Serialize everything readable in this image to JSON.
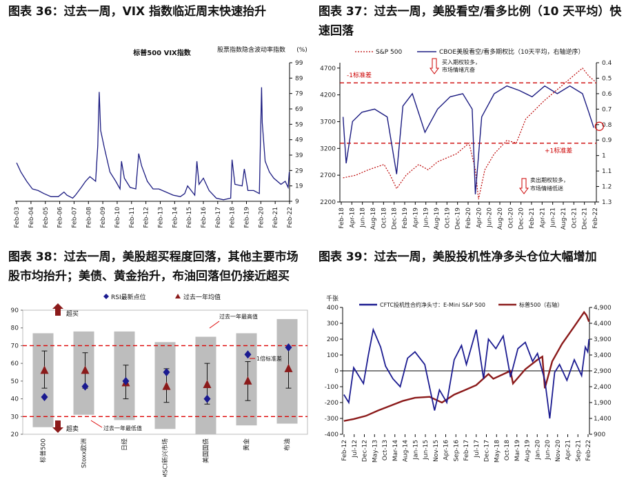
{
  "titles": {
    "c36": "图表 36：过去一周，VIX 指数临近周末快速抬升",
    "c37a": "图表 37：过去一周，美股看空/看多比例（10 天平均）快",
    "c37b": "速回落",
    "c38a": "图表 38：过去一周，美股超买程度回落，其他主要市场",
    "c38b": "股市均抬升；美债、黄金抬升，布油回落但仍接近超买",
    "c39": "图表 39：过去一周，美股投机性净多头仓位大幅增加"
  },
  "chart_data": [
    {
      "id": "vix",
      "type": "line",
      "series_name": "标普500 VIX指数",
      "ylabel": "股票指数隐含波动率指数",
      "unit": "(%)",
      "yticks": [
        9,
        19,
        29,
        39,
        49,
        59,
        69,
        79,
        89,
        99
      ],
      "ylim": [
        9,
        99
      ],
      "xticks": [
        "Feb-03",
        "Feb-04",
        "Feb-05",
        "Feb-06",
        "Feb-07",
        "Feb-08",
        "Feb-09",
        "Feb-10",
        "Feb-11",
        "Feb-12",
        "Feb-13",
        "Feb-14",
        "Feb-15",
        "Feb-16",
        "Feb-17",
        "Feb-18",
        "Feb-19",
        "Feb-20",
        "Feb-21",
        "Feb-22"
      ],
      "x": [
        2003.1,
        2003.4,
        2003.8,
        2004.2,
        2004.6,
        2005.0,
        2005.5,
        2006.0,
        2006.4,
        2006.6,
        2007.0,
        2007.2,
        2007.6,
        2007.9,
        2008.2,
        2008.6,
        2008.75,
        2008.85,
        2008.95,
        2009.2,
        2009.6,
        2010.0,
        2010.3,
        2010.4,
        2010.6,
        2011.0,
        2011.4,
        2011.6,
        2011.8,
        2012.2,
        2012.6,
        2013.0,
        2013.5,
        2014.0,
        2014.5,
        2014.8,
        2015.0,
        2015.5,
        2015.65,
        2015.8,
        2016.1,
        2016.5,
        2017.0,
        2017.5,
        2018.0,
        2018.1,
        2018.3,
        2018.8,
        2018.95,
        2019.2,
        2019.6,
        2020.0,
        2020.15,
        2020.2,
        2020.4,
        2020.7,
        2021.0,
        2021.5,
        2021.8,
        2022.0,
        2022.08
      ],
      "values": [
        34,
        28,
        22,
        17,
        16,
        14,
        12,
        12,
        15,
        13,
        11,
        13,
        18,
        22,
        25,
        22,
        45,
        80,
        55,
        44,
        28,
        22,
        17,
        35,
        24,
        18,
        17,
        40,
        32,
        22,
        17,
        17,
        15,
        13,
        12,
        14,
        19,
        13,
        35,
        20,
        24,
        16,
        11,
        10,
        11,
        36,
        20,
        19,
        30,
        16,
        16,
        14,
        83,
        60,
        35,
        28,
        24,
        20,
        22,
        18,
        28
      ]
    },
    {
      "id": "putcall",
      "type": "line",
      "series": [
        {
          "name": "S&P 500",
          "axis": "left",
          "x": [
            2018.1,
            2018.3,
            2018.5,
            2018.75,
            2018.85,
            2018.95,
            2019.1,
            2019.3,
            2019.45,
            2019.6,
            2019.9,
            2020.1,
            2020.2,
            2020.25,
            2020.35,
            2020.5,
            2020.7,
            2020.85,
            2021.0,
            2021.3,
            2021.6,
            2021.9,
            2022.0,
            2022.1
          ],
          "values": [
            2650,
            2700,
            2800,
            2900,
            2700,
            2450,
            2700,
            2900,
            2800,
            2950,
            3100,
            3300,
            2800,
            2250,
            2800,
            3100,
            3350,
            3300,
            3750,
            4100,
            4400,
            4700,
            4550,
            4450
          ]
        },
        {
          "name": "CBOE美股看空/看多期权比（10天平均，右轴逆序）",
          "axis": "right",
          "x": [
            2018.1,
            2018.15,
            2018.25,
            2018.4,
            2018.6,
            2018.8,
            2018.95,
            2019.05,
            2019.2,
            2019.4,
            2019.6,
            2019.8,
            2020.0,
            2020.15,
            2020.2,
            2020.3,
            2020.5,
            2020.7,
            2020.9,
            2021.1,
            2021.3,
            2021.5,
            2021.7,
            2021.9,
            2022.0,
            2022.08
          ],
          "values": [
            0.75,
            1.05,
            0.78,
            0.72,
            0.7,
            0.75,
            1.12,
            0.68,
            0.6,
            0.85,
            0.7,
            0.62,
            0.6,
            0.7,
            1.25,
            0.75,
            0.6,
            0.55,
            0.58,
            0.62,
            0.55,
            0.6,
            0.55,
            0.6,
            0.72,
            0.82
          ]
        }
      ],
      "left_ylim": [
        2200,
        4800
      ],
      "left_yticks": [
        2200,
        2700,
        3200,
        3700,
        4200,
        4700
      ],
      "right_ylim": [
        0.4,
        1.3
      ],
      "right_yticks": [
        0.4,
        0.5,
        0.6,
        0.7,
        0.8,
        0.9,
        1,
        1.1,
        1.2,
        1.3
      ],
      "xticks": [
        "Feb-18",
        "Apr-18",
        "Jun-18",
        "Aug-18",
        "Oct-18",
        "Dec-18",
        "Feb-19",
        "Apr-19",
        "Jun-19",
        "Aug-19",
        "Oct-19",
        "Dec-19",
        "Feb-20",
        "Apr-20",
        "Jun-20",
        "Aug-20",
        "Oct-20",
        "Dec-20",
        "Feb-21",
        "Apr-21",
        "Jun-21",
        "Aug-21",
        "Oct-21",
        "Dec-21",
        "Feb-22"
      ],
      "ref_lines": [
        {
          "label": "-1标准差",
          "value": 0.53
        },
        {
          "label": "+1标准差",
          "value": 0.92
        }
      ],
      "annotations": [
        "买入期权较多，",
        "市场情绪亢奋",
        "卖出期权较多，",
        "市场情绪低迷"
      ]
    },
    {
      "id": "rsi",
      "type": "scatter",
      "categories": [
        "标普500",
        "Stoxx欧洲",
        "日经",
        "MSCI新兴市场",
        "美国国债",
        "黄金",
        "布油"
      ],
      "series": [
        {
          "name": "RSI最新点位",
          "values": [
            41,
            47,
            50,
            55,
            40,
            65,
            69
          ]
        },
        {
          "name": "过去一年均值",
          "values": [
            56,
            56,
            49,
            47,
            48,
            50,
            57
          ]
        }
      ],
      "range_high": [
        77,
        78,
        78,
        72,
        75,
        77,
        85
      ],
      "range_low": [
        24,
        31,
        28,
        23,
        20,
        25,
        26
      ],
      "err_high": [
        67,
        66,
        59,
        57,
        60,
        61,
        69
      ],
      "err_low": [
        46,
        46,
        40,
        38,
        37,
        39,
        46
      ],
      "ylim": [
        20,
        90
      ],
      "yticks": [
        20,
        30,
        40,
        50,
        60,
        70,
        80,
        90
      ],
      "ref_lines": [
        70,
        30
      ],
      "annotations": [
        "超买",
        "超卖",
        "过去一年最高值",
        "过去一年最低值",
        "1倍标准差"
      ]
    },
    {
      "id": "cftc",
      "type": "line",
      "series": [
        {
          "name": "CFTC投机性合约净头寸：E-Mini S&P 500",
          "axis": "left",
          "x": [
            2012.1,
            2012.3,
            2012.5,
            2012.9,
            2013.1,
            2013.3,
            2013.6,
            2013.8,
            2014.1,
            2014.4,
            2014.7,
            2015.0,
            2015.4,
            2015.8,
            2016.0,
            2016.3,
            2016.6,
            2016.9,
            2017.1,
            2017.5,
            2017.8,
            2018.0,
            2018.3,
            2018.6,
            2018.9,
            2019.2,
            2019.5,
            2019.8,
            2020.0,
            2020.3,
            2020.5,
            2020.7,
            2020.9,
            2021.2,
            2021.5,
            2021.8,
            2021.95,
            2022.05,
            2022.1
          ],
          "values": [
            -150,
            -200,
            20,
            -80,
            100,
            260,
            150,
            30,
            -50,
            -100,
            80,
            120,
            40,
            -250,
            -120,
            -200,
            70,
            160,
            40,
            260,
            -50,
            200,
            140,
            220,
            -40,
            140,
            180,
            60,
            110,
            -60,
            -300,
            -10,
            40,
            -60,
            70,
            -30,
            150,
            120,
            200
          ]
        },
        {
          "name": "标普500（右轴）",
          "axis": "right",
          "x": [
            2012.1,
            2012.5,
            2013.0,
            2013.5,
            2014.0,
            2014.5,
            2015.0,
            2015.6,
            2016.1,
            2016.6,
            2017.0,
            2017.5,
            2018.0,
            2018.2,
            2018.9,
            2019.0,
            2019.5,
            2020.0,
            2020.2,
            2020.3,
            2020.6,
            2021.0,
            2021.5,
            2021.9,
            2022.0,
            2022.1
          ],
          "values": [
            1320,
            1380,
            1480,
            1650,
            1800,
            1950,
            2050,
            2080,
            1900,
            2150,
            2280,
            2450,
            2800,
            2650,
            2900,
            2500,
            2950,
            3250,
            3350,
            2350,
            3200,
            3750,
            4300,
            4750,
            4650,
            4450
          ]
        }
      ],
      "ylabel": "千张",
      "left_ylim": [
        -400,
        400
      ],
      "left_yticks": [
        -400,
        -300,
        -200,
        -100,
        0,
        100,
        200,
        300,
        400
      ],
      "right_ylim": [
        900,
        4900
      ],
      "right_yticks": [
        "900",
        "1,400",
        "1,900",
        "2,400",
        "2,900",
        "3,400",
        "3,900",
        "4,400",
        "4,900"
      ],
      "xticks": [
        "Feb-12",
        "Jul-12",
        "Dec-12",
        "May-13",
        "Oct-13",
        "Mar-14",
        "Aug-14",
        "Jan-15",
        "Jun-15",
        "Nov-15",
        "Apr-16",
        "Sep-16",
        "Feb-17",
        "Jul-17",
        "Dec-17",
        "May-18",
        "Oct-18",
        "Mar-19",
        "Aug-19",
        "Jan-20",
        "Jun-20",
        "Nov-20",
        "Apr-21",
        "Sep-21",
        "Feb-22"
      ]
    }
  ]
}
